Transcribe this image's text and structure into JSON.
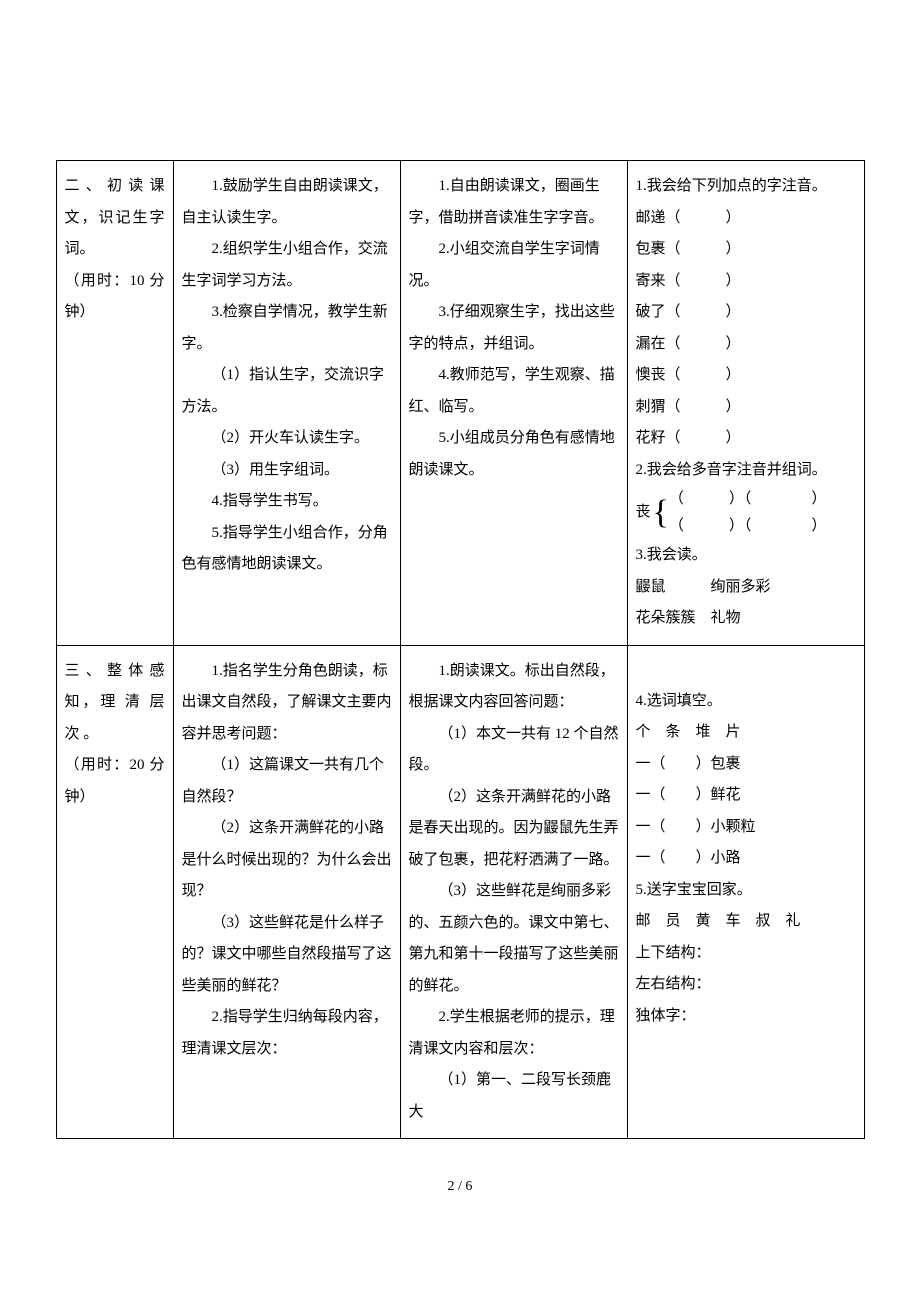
{
  "page": {
    "number": "2 / 6"
  },
  "table": {
    "row1": {
      "col1": {
        "title": "二、初读课文，识记生字词。",
        "time": "（用时：10 分钟）"
      },
      "col2": [
        "1.鼓励学生自由朗读课文，自主认读生字。",
        "2.组织学生小组合作，交流生字词学习方法。",
        "3.检察自学情况，教学生新字。",
        "（1）指认生字，交流识字方法。",
        "（2）开火车认读生字。",
        "（3）用生字组词。",
        "4.指导学生书写。",
        "5.指导学生小组合作，分角色有感情地朗读课文。"
      ],
      "col3": [
        "1.自由朗读课文，圈画生字，借助拼音读准生字字音。",
        "2.小组交流自学生字词情况。",
        "3.仔细观察生字，找出这些字的特点，并组词。",
        "4.教师范写，学生观察、描红、临写。",
        "5.小组成员分角色有感情地朗读课文。"
      ],
      "col4": {
        "head1": "1.我会给下列加点的字注音。",
        "items1": [
          "邮递（　　　）",
          "包裹（　　　）",
          "寄来（　　　）",
          "破了（　　　）",
          "漏在（　　　）",
          "懊丧（　　　）",
          "刺猬（　　　）",
          "花籽（　　　）"
        ],
        "head2": "2.我会给多音字注音并组词。",
        "brace_char": "丧",
        "brace_top": "（　　　）（　　　　）",
        "brace_bot": "（　　　）（　　　　）",
        "head3": "3.我会读。",
        "items3_l1": "鼹鼠　　　绚丽多彩",
        "items3_l2": "花朵簇簇　礼物"
      }
    },
    "row2": {
      "col1": {
        "title": "三、整体感知，理 清 层 次 。",
        "time": "（用时：20 分钟）"
      },
      "col2": [
        "1.指名学生分角色朗读，标出课文自然段，了解课文主要内容并思考问题：",
        "（1）这篇课文一共有几个自然段？",
        "（2）这条开满鲜花的小路是什么时候出现的？为什么会出现？",
        "（3）这些鲜花是什么样子的？课文中哪些自然段描写了这些美丽的鲜花？",
        "2.指导学生归纳每段内容，理清课文层次："
      ],
      "col3": [
        "1.朗读课文。标出自然段，根据课文内容回答问题：",
        "（1）本文一共有 12 个自然段。",
        "（2）这条开满鲜花的小路是春天出现的。因为鼹鼠先生弄破了包裹，把花籽洒满了一路。",
        "（3）这些鲜花是绚丽多彩的、五颜六色的。课文中第七、第九和第十一段描写了这些美丽的鲜花。",
        "2.学生根据老师的提示，理清课文内容和层次：",
        "（1）第一、二段写长颈鹿大"
      ],
      "col4": {
        "head4": "4.选词填空。",
        "options": "个　条　堆　片",
        "items4": [
          "一（　　）包裹",
          "一（　　）鲜花",
          "一（　　）小颗粒",
          "一（　　）小路"
        ],
        "head5": "5.送字宝宝回家。",
        "chars5": "邮　员　黄　车　叔　礼",
        "lines5": [
          "上下结构：",
          "左右结构：",
          "独体字："
        ]
      }
    }
  }
}
